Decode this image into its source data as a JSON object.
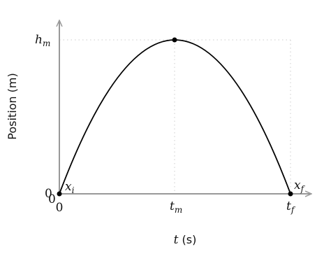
{
  "y_axis": {
    "label": "Position (m)",
    "ticks": [
      {
        "base": "0"
      },
      {
        "base": "h",
        "sub": "m"
      }
    ]
  },
  "x_axis": {
    "label": {
      "var": "t",
      "unit": "(s)"
    },
    "ticks": [
      {
        "base": "0"
      },
      {
        "base": "t",
        "sub": "m"
      },
      {
        "base": "t",
        "sub": "f"
      }
    ]
  },
  "origin_label": "0",
  "points": [
    {
      "base": "x",
      "sub": "i"
    },
    {
      "base": "x",
      "sub": "f"
    }
  ]
}
